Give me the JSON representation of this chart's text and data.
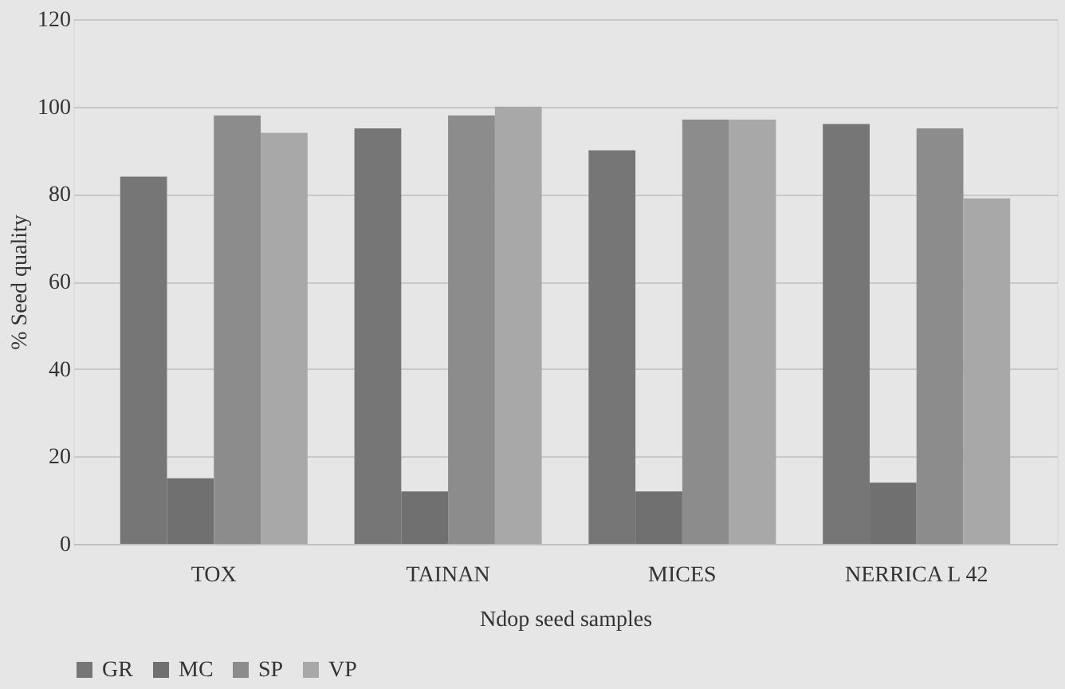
{
  "chart_data": {
    "type": "bar",
    "xlabel": "Ndop seed samples",
    "ylabel": "% Seed quality",
    "categories": [
      "TOX",
      "TAINAN",
      "MICES",
      "NERRICA L 42"
    ],
    "series": [
      {
        "name": "GR",
        "color": "#767676",
        "values": [
          84,
          95,
          90,
          96
        ]
      },
      {
        "name": "MC",
        "color": "#707070",
        "values": [
          15,
          12,
          12,
          14
        ]
      },
      {
        "name": "SP",
        "color": "#8c8c8c",
        "values": [
          98,
          98,
          97,
          95
        ]
      },
      {
        "name": "VP",
        "color": "#a8a8a8",
        "values": [
          94,
          100,
          97,
          79
        ]
      }
    ],
    "ylim": [
      0,
      120
    ],
    "yticks": [
      0,
      20,
      40,
      60,
      80,
      100,
      120
    ],
    "grid": "y",
    "legend": "bottom"
  }
}
